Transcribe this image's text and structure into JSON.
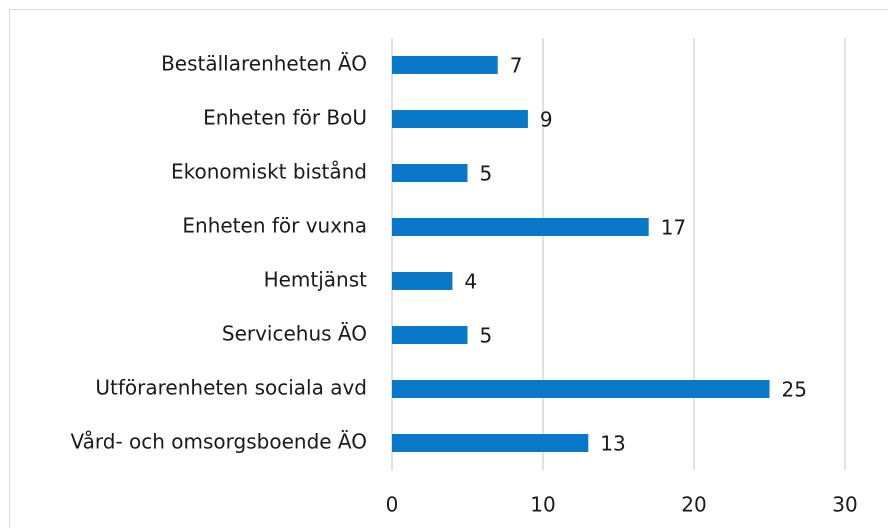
{
  "chart_data": {
    "type": "bar",
    "orientation": "horizontal",
    "categories": [
      "Beställarenheten ÄO",
      "Enheten för BoU",
      "Ekonomiskt bistånd",
      "Enheten för vuxna",
      "Hemtjänst",
      "Servicehus ÄO",
      "Utförarenheten sociala avd",
      "Vård- och omsorgsboende ÄO"
    ],
    "values": [
      7,
      9,
      5,
      17,
      4,
      5,
      25,
      13
    ],
    "color": "#0a78c8",
    "xlim": [
      0,
      30
    ],
    "xticks": [
      0,
      10,
      20,
      30
    ],
    "grid": true
  }
}
